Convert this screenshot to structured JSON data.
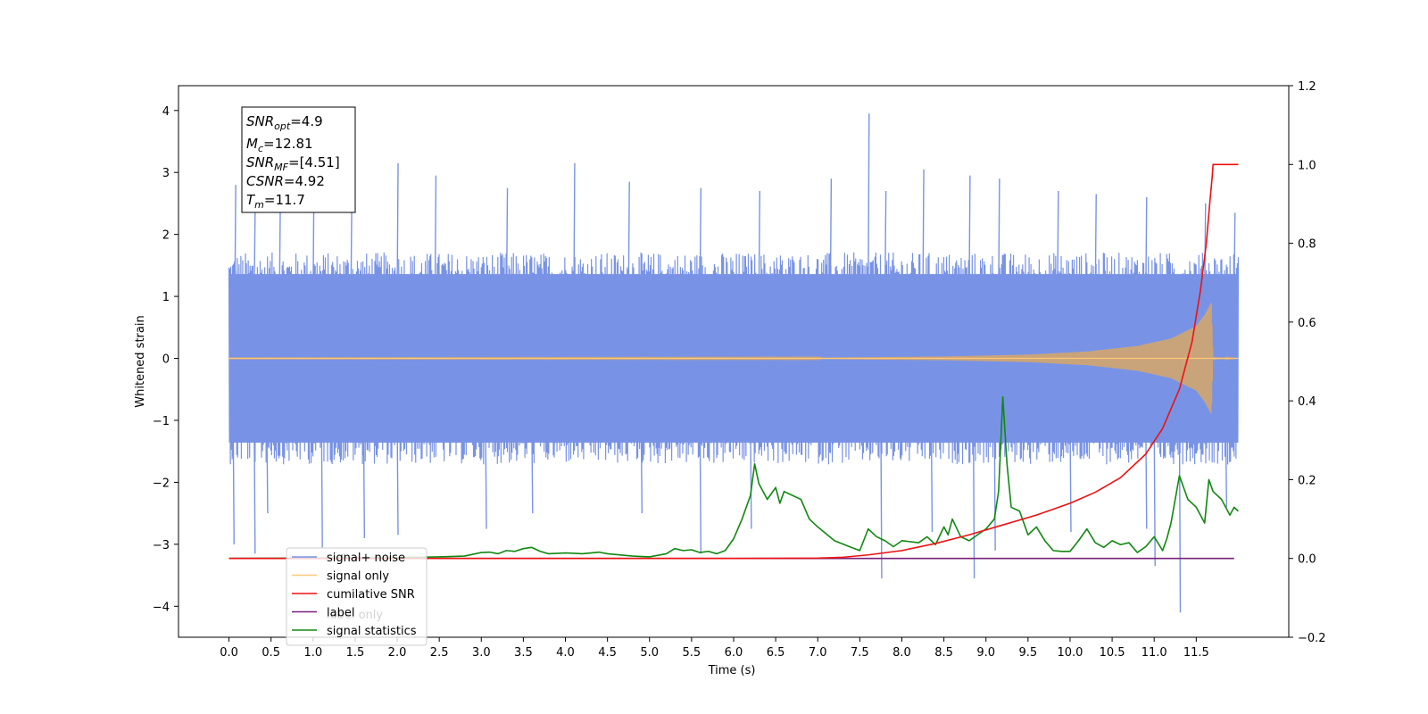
{
  "chart_data": {
    "type": "line",
    "title": "",
    "xlabel": "Time (s)",
    "ylabel": "Whitened strain",
    "y2label": "",
    "xlim": [
      -0.6,
      12.6
    ],
    "ylim": [
      -4.5,
      4.4
    ],
    "y2lim": [
      -0.2,
      1.2
    ],
    "xticks": [
      "0.0",
      "0.5",
      "1.0",
      "1.5",
      "2.0",
      "2.5",
      "3.0",
      "3.5",
      "4.0",
      "4.5",
      "5.0",
      "5.5",
      "6.0",
      "6.5",
      "7.0",
      "7.5",
      "8.0",
      "8.5",
      "9.0",
      "9.5",
      "10.0",
      "10.5",
      "11.0",
      "11.5"
    ],
    "yticks": [
      "4",
      "3",
      "2",
      "1",
      "0",
      "−1",
      "−2",
      "−3",
      "−4"
    ],
    "y2ticks": [
      "1.2",
      "1.0",
      "0.8",
      "0.6",
      "0.4",
      "0.2",
      "0.0",
      "−0.2"
    ],
    "legend_position": "lower-left",
    "legend": [
      {
        "label": "signal+ noise",
        "color": "#7893e6"
      },
      {
        "label": "signal only",
        "color": "#ffc878"
      },
      {
        "label": "cumilative SNR",
        "color": "#ee1111"
      },
      {
        "label": "label",
        "color": "#7a1f7a"
      },
      {
        "label": "signal statistics",
        "color": "#118811"
      }
    ],
    "legend_ghost_text": "label only",
    "info_box": {
      "snr_opt": {
        "sym": "SNR",
        "sub": "opt",
        "value": "=4.9"
      },
      "mc": {
        "sym": "M",
        "sub": "c",
        "value": "=12.81"
      },
      "snr_mf": {
        "sym": "SNR",
        "sub": "MF",
        "value": "=[4.51]"
      },
      "csnr": {
        "sym": "CSNR",
        "value": "=4.92"
      },
      "tm": {
        "sym": "T",
        "sub": "m",
        "value": "=11.7"
      }
    },
    "series": [
      {
        "name": "signal+ noise",
        "axis": "left",
        "color": "#7893e6",
        "t_range": [
          0.0,
          12.0
        ],
        "band_low": -1.6,
        "band_high": 1.6,
        "peaks": [
          [
            0.07,
            2.8
          ],
          [
            0.3,
            2.35
          ],
          [
            0.6,
            2.5
          ],
          [
            1.0,
            2.8
          ],
          [
            1.45,
            2.6
          ],
          [
            2.0,
            3.15
          ],
          [
            2.45,
            2.95
          ],
          [
            3.3,
            2.75
          ],
          [
            4.1,
            3.15
          ],
          [
            4.75,
            2.85
          ],
          [
            5.6,
            2.75
          ],
          [
            6.3,
            2.7
          ],
          [
            7.15,
            2.9
          ],
          [
            7.6,
            3.95
          ],
          [
            7.8,
            2.7
          ],
          [
            8.25,
            3.05
          ],
          [
            8.8,
            2.95
          ],
          [
            9.15,
            2.9
          ],
          [
            9.85,
            2.7
          ],
          [
            10.3,
            2.65
          ],
          [
            10.9,
            2.6
          ],
          [
            11.6,
            2.5
          ],
          [
            11.95,
            2.35
          ]
        ],
        "troughs": [
          [
            0.05,
            -3.0
          ],
          [
            0.3,
            -3.15
          ],
          [
            0.45,
            -2.5
          ],
          [
            1.1,
            -3.05
          ],
          [
            1.6,
            -2.9
          ],
          [
            2.0,
            -2.85
          ],
          [
            3.05,
            -2.75
          ],
          [
            3.6,
            -2.5
          ],
          [
            4.9,
            -2.5
          ],
          [
            5.6,
            -3.15
          ],
          [
            6.2,
            -2.75
          ],
          [
            7.75,
            -3.55
          ],
          [
            8.35,
            -2.8
          ],
          [
            8.85,
            -3.55
          ],
          [
            9.1,
            -3.1
          ],
          [
            10.0,
            -2.8
          ],
          [
            10.9,
            -2.75
          ],
          [
            11.0,
            -3.35
          ],
          [
            11.3,
            -4.1
          ],
          [
            11.85,
            -2.4
          ]
        ]
      },
      {
        "name": "signal only",
        "axis": "left",
        "color": "#ffc878",
        "envelope": [
          [
            0.0,
            0.005
          ],
          [
            7.0,
            0.01
          ],
          [
            8.5,
            0.03
          ],
          [
            9.5,
            0.06
          ],
          [
            10.2,
            0.11
          ],
          [
            10.8,
            0.2
          ],
          [
            11.2,
            0.32
          ],
          [
            11.5,
            0.52
          ],
          [
            11.6,
            0.7
          ],
          [
            11.68,
            0.9
          ],
          [
            11.7,
            0.02
          ],
          [
            12.0,
            0.0
          ]
        ]
      },
      {
        "name": "cumilative SNR",
        "axis": "right",
        "color": "#ee1111",
        "x": [
          0.0,
          6.0,
          7.0,
          7.3,
          7.6,
          8.0,
          8.4,
          8.8,
          9.2,
          9.6,
          10.0,
          10.3,
          10.6,
          10.9,
          11.1,
          11.3,
          11.45,
          11.55,
          11.62,
          11.66,
          11.69,
          11.7,
          12.0
        ],
        "y": [
          0.0,
          0.0,
          0.001,
          0.003,
          0.009,
          0.02,
          0.038,
          0.06,
          0.085,
          0.11,
          0.14,
          0.168,
          0.205,
          0.265,
          0.33,
          0.43,
          0.55,
          0.68,
          0.8,
          0.9,
          0.97,
          1.0,
          1.0
        ]
      },
      {
        "name": "label",
        "axis": "right",
        "color": "#7a1f7a",
        "x": [
          0.0,
          11.95
        ],
        "y": [
          0.0,
          0.0
        ]
      },
      {
        "name": "signal statistics",
        "axis": "right",
        "color": "#118811",
        "x": [
          0.0,
          1.0,
          2.0,
          2.5,
          2.8,
          3.0,
          3.1,
          3.2,
          3.3,
          3.4,
          3.5,
          3.6,
          3.7,
          3.8,
          4.0,
          4.2,
          4.4,
          4.5,
          4.6,
          4.8,
          5.0,
          5.2,
          5.3,
          5.4,
          5.5,
          5.6,
          5.7,
          5.8,
          5.9,
          6.0,
          6.1,
          6.2,
          6.25,
          6.3,
          6.4,
          6.5,
          6.55,
          6.6,
          6.7,
          6.8,
          6.9,
          7.0,
          7.2,
          7.4,
          7.5,
          7.6,
          7.7,
          7.8,
          7.9,
          8.0,
          8.2,
          8.3,
          8.4,
          8.5,
          8.55,
          8.6,
          8.7,
          8.8,
          8.9,
          9.0,
          9.1,
          9.15,
          9.2,
          9.25,
          9.3,
          9.4,
          9.5,
          9.6,
          9.7,
          9.8,
          9.9,
          10.0,
          10.1,
          10.2,
          10.3,
          10.4,
          10.5,
          10.6,
          10.7,
          10.8,
          10.9,
          11.0,
          11.1,
          11.15,
          11.2,
          11.3,
          11.4,
          11.5,
          11.6,
          11.65,
          11.7,
          11.8,
          11.9,
          11.95,
          12.0
        ],
        "y": [
          0.0,
          0.001,
          0.002,
          0.004,
          0.006,
          0.015,
          0.016,
          0.012,
          0.02,
          0.018,
          0.025,
          0.028,
          0.018,
          0.012,
          0.014,
          0.012,
          0.016,
          0.012,
          0.01,
          0.006,
          0.004,
          0.012,
          0.025,
          0.02,
          0.022,
          0.015,
          0.018,
          0.012,
          0.02,
          0.05,
          0.1,
          0.16,
          0.24,
          0.19,
          0.15,
          0.18,
          0.14,
          0.17,
          0.16,
          0.15,
          0.1,
          0.08,
          0.045,
          0.028,
          0.02,
          0.075,
          0.055,
          0.045,
          0.03,
          0.045,
          0.04,
          0.055,
          0.035,
          0.08,
          0.06,
          0.1,
          0.055,
          0.045,
          0.06,
          0.075,
          0.1,
          0.17,
          0.41,
          0.24,
          0.13,
          0.12,
          0.06,
          0.08,
          0.045,
          0.02,
          0.018,
          0.018,
          0.045,
          0.075,
          0.04,
          0.028,
          0.045,
          0.035,
          0.04,
          0.015,
          0.03,
          0.055,
          0.02,
          0.05,
          0.09,
          0.21,
          0.15,
          0.13,
          0.09,
          0.2,
          0.17,
          0.15,
          0.11,
          0.13,
          0.12
        ]
      }
    ]
  }
}
